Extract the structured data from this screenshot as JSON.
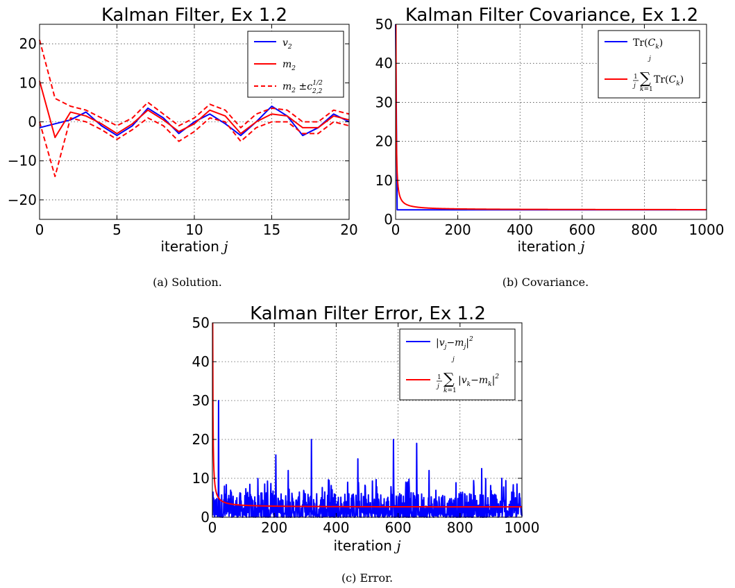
{
  "figure": {
    "captions": [
      "(a) Solution.",
      "(b) Covariance.",
      "(c) Error."
    ]
  },
  "chart_data": [
    {
      "type": "line",
      "title": "Kalman Filter, Ex 1.2",
      "xlabel": "iteration j",
      "xlim": [
        0,
        20
      ],
      "ylim": [
        -25,
        25
      ],
      "xticks": [
        0,
        5,
        10,
        15,
        20
      ],
      "yticks": [
        -20,
        -10,
        0,
        10,
        20
      ],
      "grid": true,
      "legend_position": "top-right",
      "x": [
        0,
        1,
        2,
        3,
        4,
        5,
        6,
        7,
        8,
        9,
        10,
        11,
        12,
        13,
        14,
        15,
        16,
        17,
        18,
        19,
        20
      ],
      "series": [
        {
          "name": "v_2",
          "color": "#0000ff",
          "style": "solid",
          "values": [
            -1.5,
            -0.5,
            0.5,
            2.5,
            -1,
            -3.5,
            -1,
            3.5,
            1,
            -3,
            0,
            2,
            -0.5,
            -3.5,
            0,
            4,
            1.5,
            -3.5,
            -1.5,
            2,
            0
          ]
        },
        {
          "name": "m_2",
          "color": "#ff0000",
          "style": "solid",
          "values": [
            10.5,
            -4,
            2.5,
            1.5,
            -0.5,
            -3,
            -0.5,
            3,
            0.5,
            -2.5,
            -0.5,
            3,
            1.5,
            -3,
            0,
            2,
            1.5,
            -1.5,
            -1.5,
            1.5,
            0.5
          ]
        },
        {
          "name": "m_2 ± c_{2,2}^{1/2}",
          "color": "#ff0000",
          "style": "dashed",
          "values": [
            21,
            6,
            4,
            3,
            1,
            -1,
            1,
            5,
            2,
            -1,
            1,
            4.5,
            3,
            -1.5,
            2,
            3.5,
            3,
            0,
            0,
            3,
            2
          ]
        },
        {
          "name": "",
          "color": "#ff0000",
          "style": "dashed",
          "values": [
            0,
            -14,
            1,
            0,
            -2,
            -4.5,
            -2,
            1,
            -1,
            -5,
            -2.5,
            1,
            0,
            -5,
            -1.5,
            0,
            0,
            -3,
            -3,
            0,
            -1
          ]
        }
      ]
    },
    {
      "type": "line",
      "title": "Kalman Filter Covariance, Ex 1.2",
      "xlabel": "iteration j",
      "xlim": [
        0,
        1000
      ],
      "ylim": [
        0,
        50
      ],
      "xticks": [
        0,
        200,
        400,
        600,
        800,
        1000
      ],
      "yticks": [
        0,
        10,
        20,
        30,
        40,
        50
      ],
      "grid": true,
      "legend_position": "top-right",
      "series": [
        {
          "name": "Tr(C_k)",
          "color": "#0000ff",
          "formula": "steady",
          "x": [
            0,
            5,
            1000
          ],
          "values": [
            50,
            2.45,
            2.45
          ]
        },
        {
          "name": "(1/j) Σ_{k=1}^{j} Tr(C_k)",
          "color": "#ff0000",
          "formula": "running_mean",
          "start": 50,
          "steady": 2.45,
          "x_range": [
            1,
            1000
          ]
        }
      ]
    },
    {
      "type": "line",
      "title": "Kalman Filter Error, Ex 1.2",
      "xlabel": "iteration j",
      "xlim": [
        0,
        1000
      ],
      "ylim": [
        0,
        50
      ],
      "xticks": [
        0,
        200,
        400,
        600,
        800,
        1000
      ],
      "yticks": [
        0,
        10,
        20,
        30,
        40,
        50
      ],
      "grid": true,
      "legend_position": "top-right",
      "series": [
        {
          "name": "|v_j − m_j|^2",
          "color": "#0000ff",
          "formula": "noisy_error",
          "x_range": [
            1,
            1000
          ],
          "typical_max": 10,
          "spikes": [
            [
              20,
              30
            ],
            [
              205,
              16
            ],
            [
              245,
              12
            ],
            [
              320,
              20
            ],
            [
              470,
              15
            ],
            [
              585,
              20
            ],
            [
              660,
              19
            ],
            [
              700,
              12
            ],
            [
              870,
              12.5
            ],
            [
              935,
              10
            ]
          ]
        },
        {
          "name": "(1/j) Σ_{k=1}^{j} |v_k − m_k|^2",
          "color": "#ff0000",
          "formula": "running_mean",
          "start": 50,
          "steady": 2.6,
          "x_range": [
            1,
            1000
          ]
        }
      ]
    }
  ]
}
